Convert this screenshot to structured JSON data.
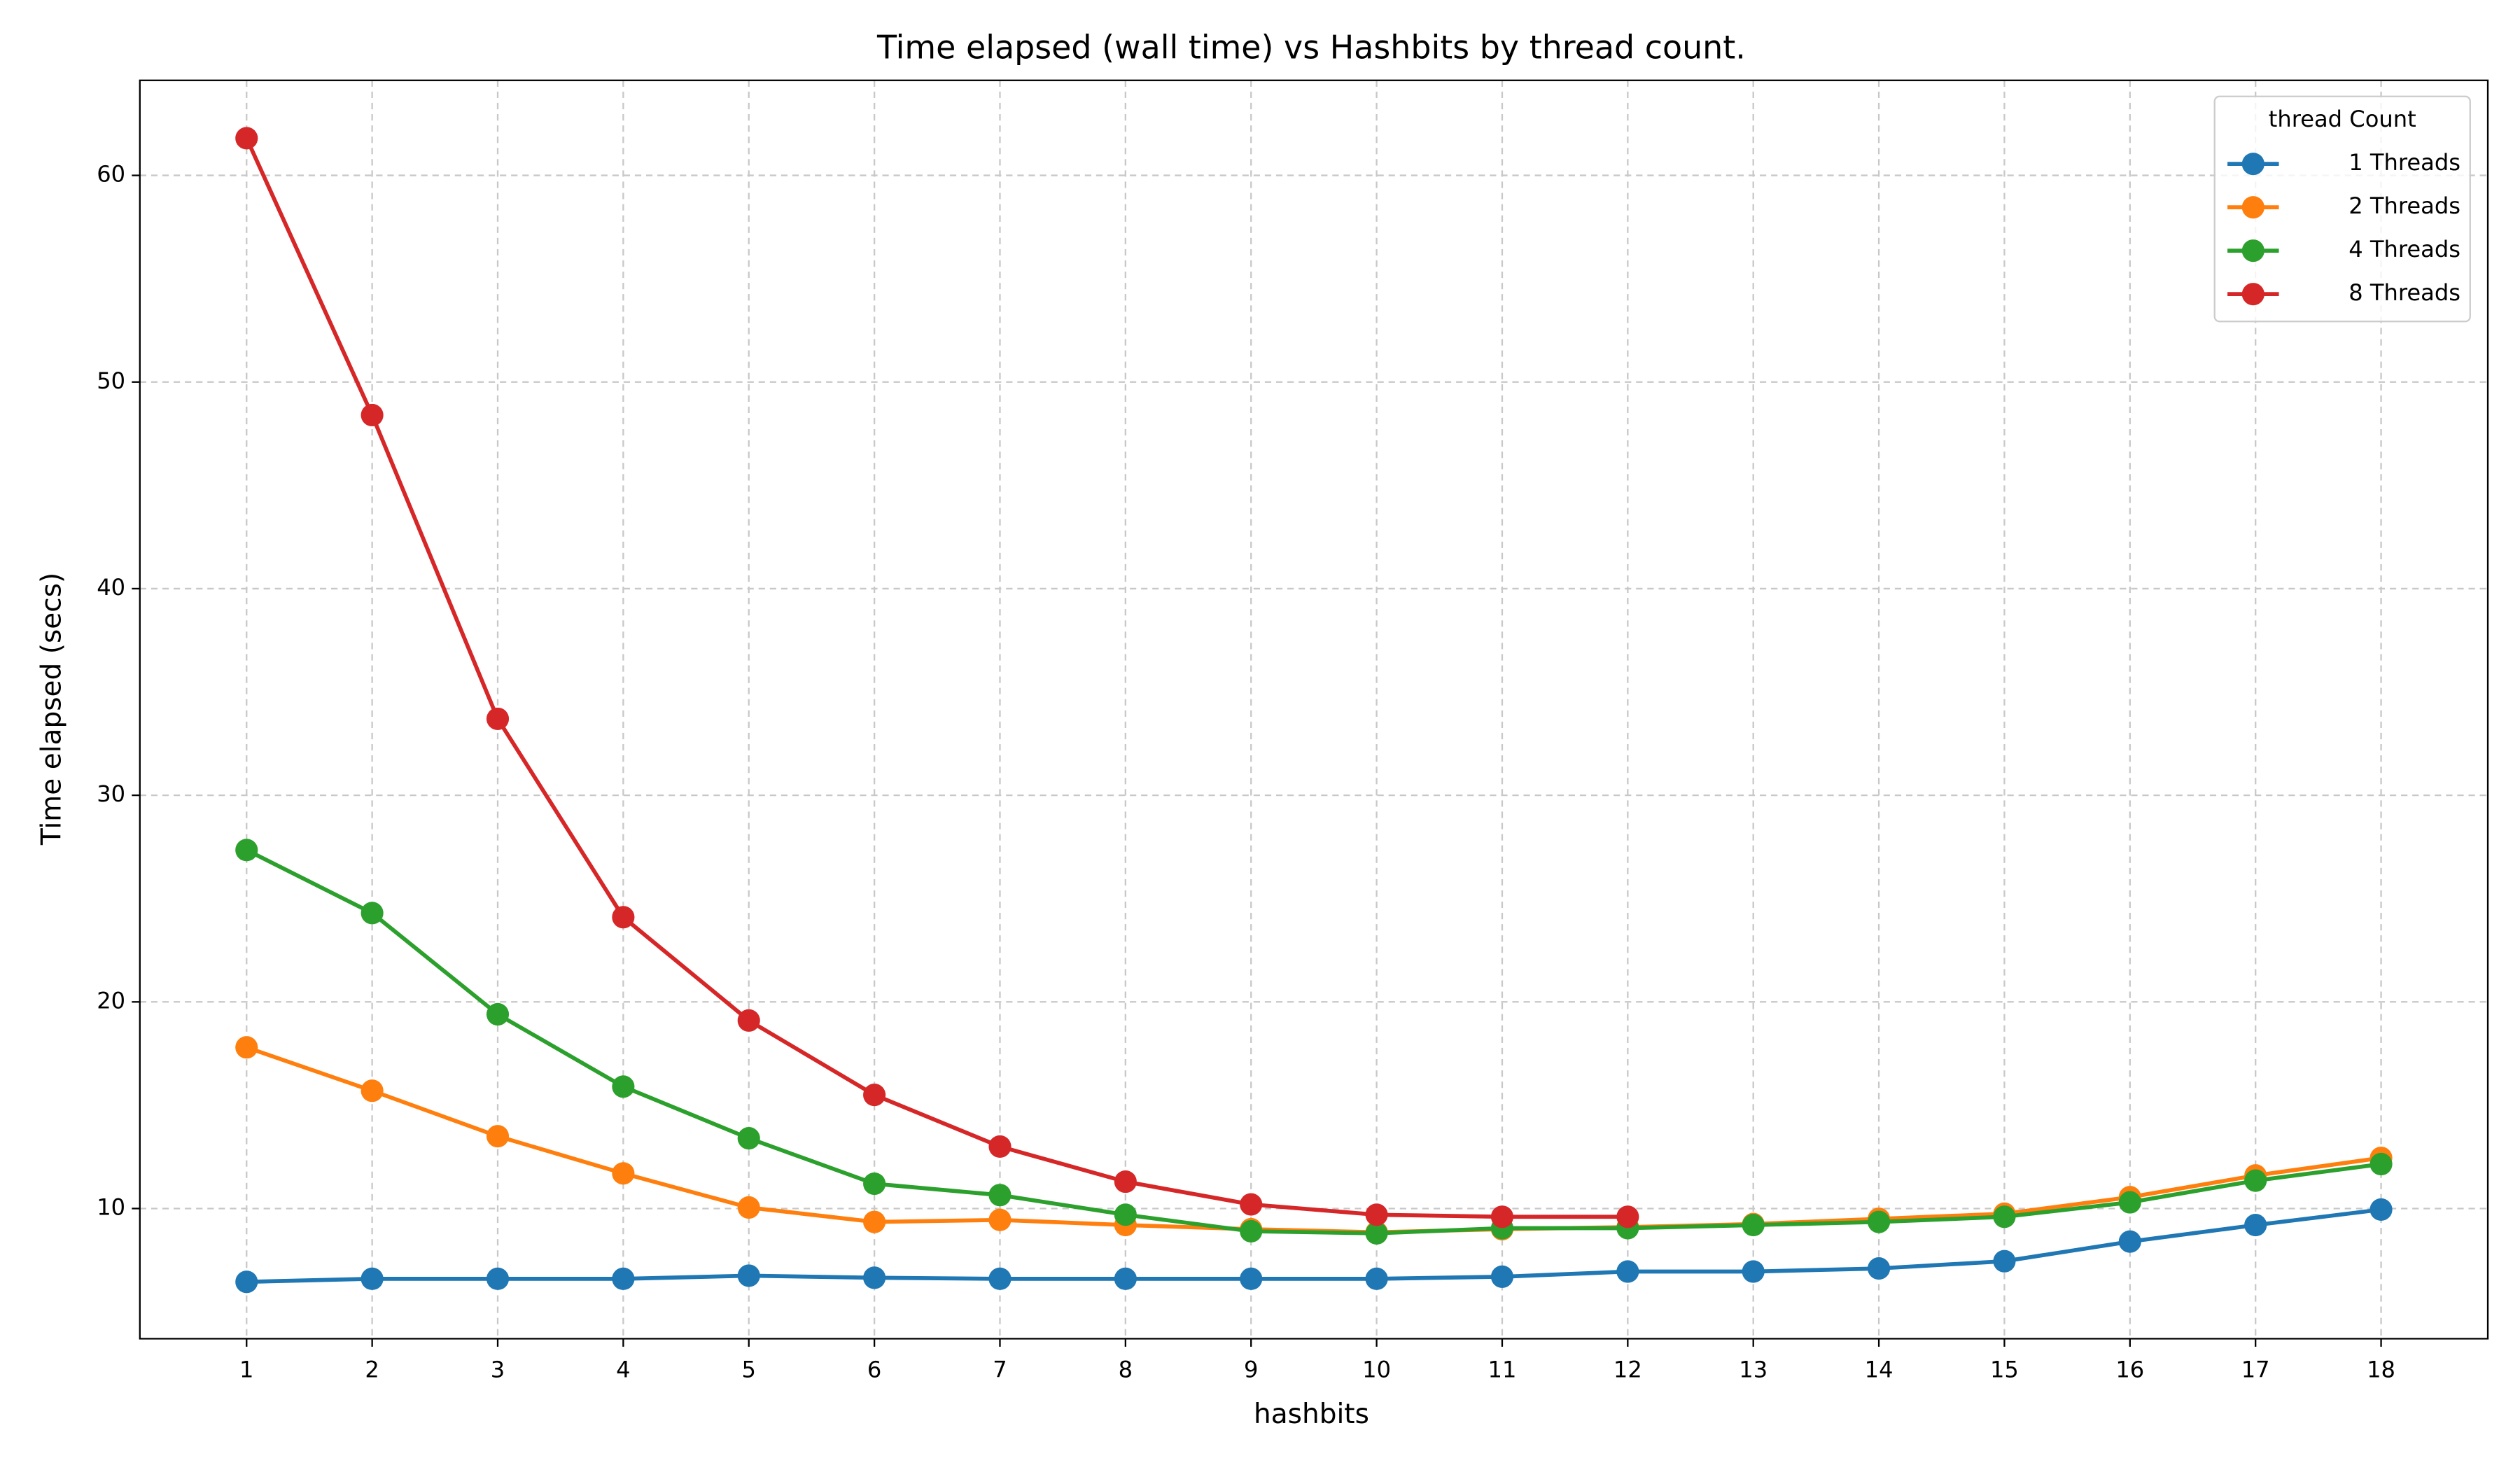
{
  "chart_data": {
    "type": "line",
    "title": "Time elapsed (wall time) vs Hashbits by thread count.",
    "xlabel": "hashbits",
    "ylabel": "Time elapsed (secs)",
    "x": [
      1,
      2,
      3,
      4,
      5,
      6,
      7,
      8,
      9,
      10,
      11,
      12,
      13,
      14,
      15,
      16,
      17,
      18
    ],
    "series": [
      {
        "name": "1 Threads",
        "color": "#1f77b4",
        "values": [
          6.45,
          6.6,
          6.6,
          6.6,
          6.75,
          6.65,
          6.6,
          6.6,
          6.6,
          6.6,
          6.7,
          6.95,
          6.95,
          7.1,
          7.45,
          8.4,
          9.2,
          9.95
        ]
      },
      {
        "name": "2 Threads",
        "color": "#ff7f0e",
        "values": [
          17.8,
          15.7,
          13.5,
          11.7,
          10.05,
          9.35,
          9.45,
          9.2,
          9.0,
          8.85,
          9.0,
          9.1,
          9.25,
          9.5,
          9.75,
          10.55,
          11.6,
          12.45
        ]
      },
      {
        "name": "4 Threads",
        "color": "#2ca02c",
        "values": [
          27.35,
          24.3,
          19.4,
          15.9,
          13.4,
          11.2,
          10.65,
          9.7,
          8.9,
          8.8,
          9.05,
          9.05,
          9.2,
          9.35,
          9.6,
          10.3,
          11.35,
          12.15
        ]
      },
      {
        "name": "8 Threads",
        "color": "#d62728",
        "values": [
          61.8,
          48.4,
          33.7,
          24.1,
          19.1,
          15.5,
          13.0,
          11.3,
          10.2,
          9.7,
          9.6,
          9.6,
          null,
          null,
          null,
          null,
          null,
          null
        ]
      }
    ],
    "xlim": [
      0.15,
      18.85
    ],
    "xticks": [
      1,
      2,
      3,
      4,
      5,
      6,
      7,
      8,
      9,
      10,
      11,
      12,
      13,
      14,
      15,
      16,
      17,
      18
    ],
    "ylim": [
      3.7,
      64.6
    ],
    "yticks": [
      10,
      20,
      30,
      40,
      50,
      60
    ],
    "grid": true,
    "legend_title": "thread Count",
    "legend_position": "upper right"
  }
}
